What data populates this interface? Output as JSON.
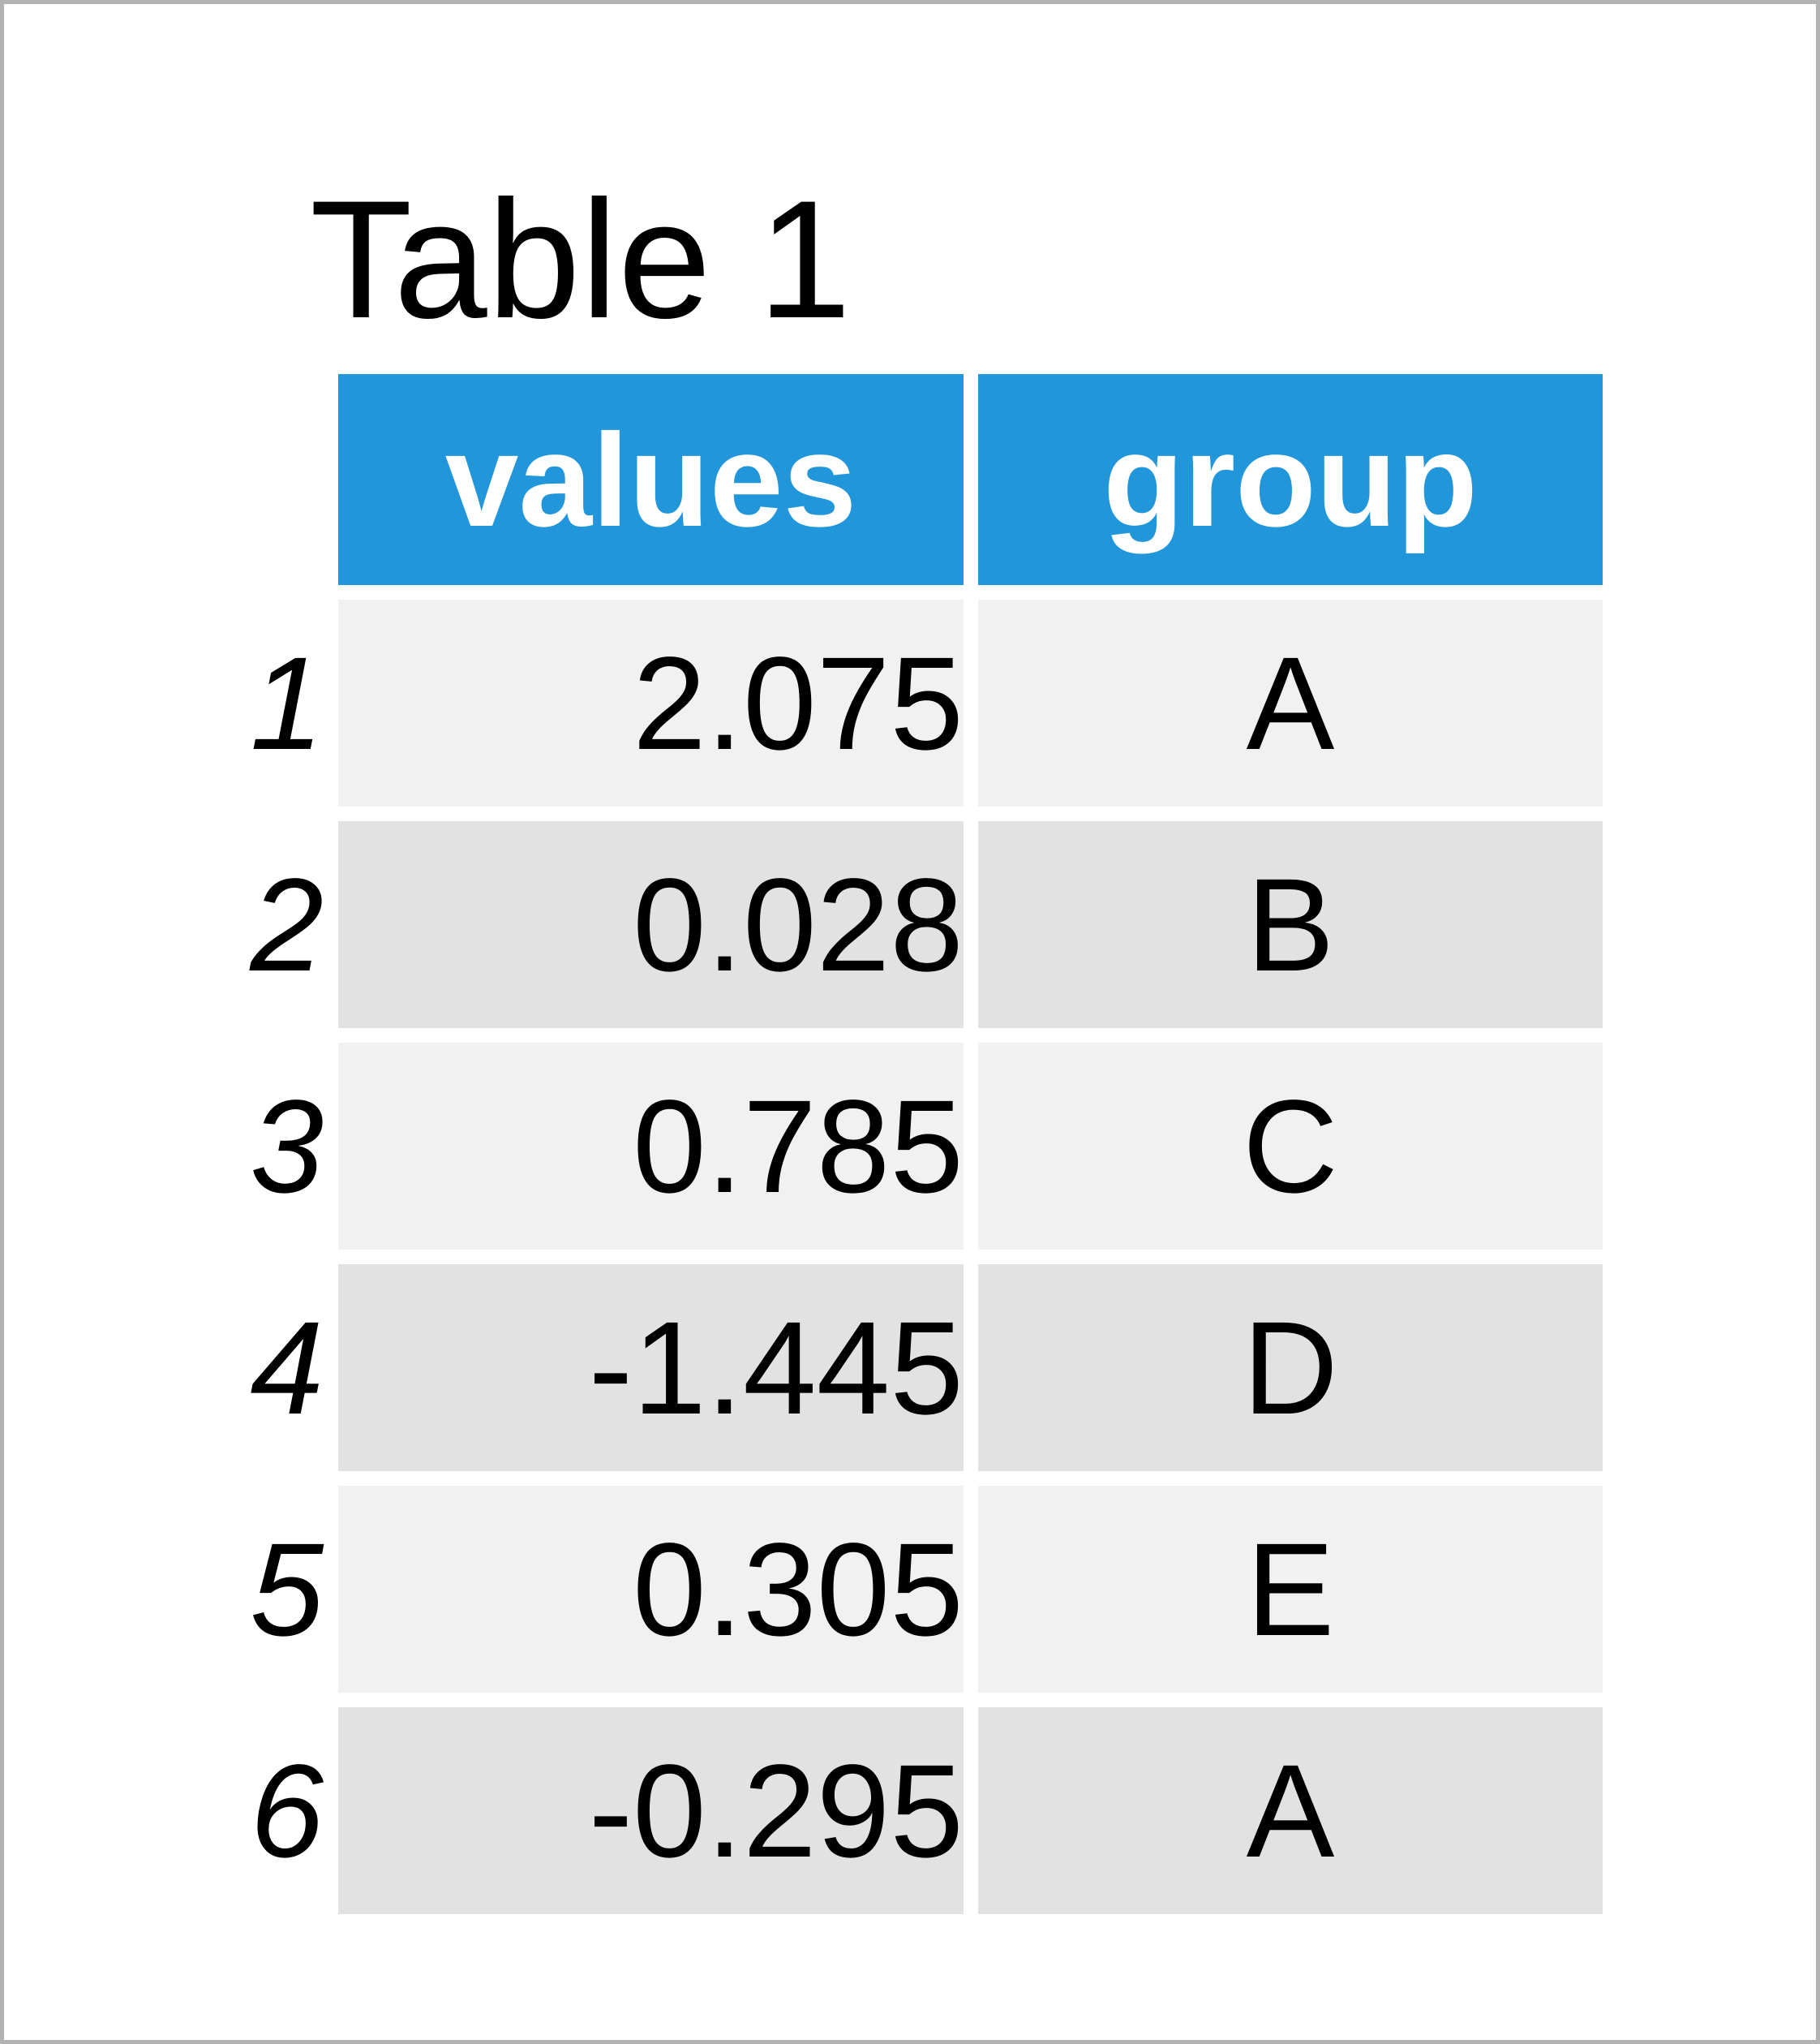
{
  "title": "Table 1",
  "table": {
    "columns": {
      "values": "values",
      "group": "group"
    },
    "rows": [
      {
        "index": "1",
        "values": "2.075",
        "group": "A"
      },
      {
        "index": "2",
        "values": "0.028",
        "group": "B"
      },
      {
        "index": "3",
        "values": "0.785",
        "group": "C"
      },
      {
        "index": "4",
        "values": "-1.445",
        "group": "D"
      },
      {
        "index": "5",
        "values": "0.305",
        "group": "E"
      },
      {
        "index": "6",
        "values": "-0.295",
        "group": "A"
      }
    ]
  },
  "colors": {
    "header_bg": "#2196db",
    "header_text": "#ffffff",
    "row_light": "#f1f1f1",
    "row_dark": "#e2e2e2",
    "frame_border": "#b2b2b2",
    "text": "#000000"
  },
  "chart_data": {
    "type": "table",
    "title": "Table 1",
    "columns": [
      "values",
      "group"
    ],
    "row_indices": [
      1,
      2,
      3,
      4,
      5,
      6
    ],
    "rows": [
      [
        2.075,
        "A"
      ],
      [
        0.028,
        "B"
      ],
      [
        0.785,
        "C"
      ],
      [
        -1.445,
        "D"
      ],
      [
        0.305,
        "E"
      ],
      [
        -0.295,
        "A"
      ]
    ]
  }
}
